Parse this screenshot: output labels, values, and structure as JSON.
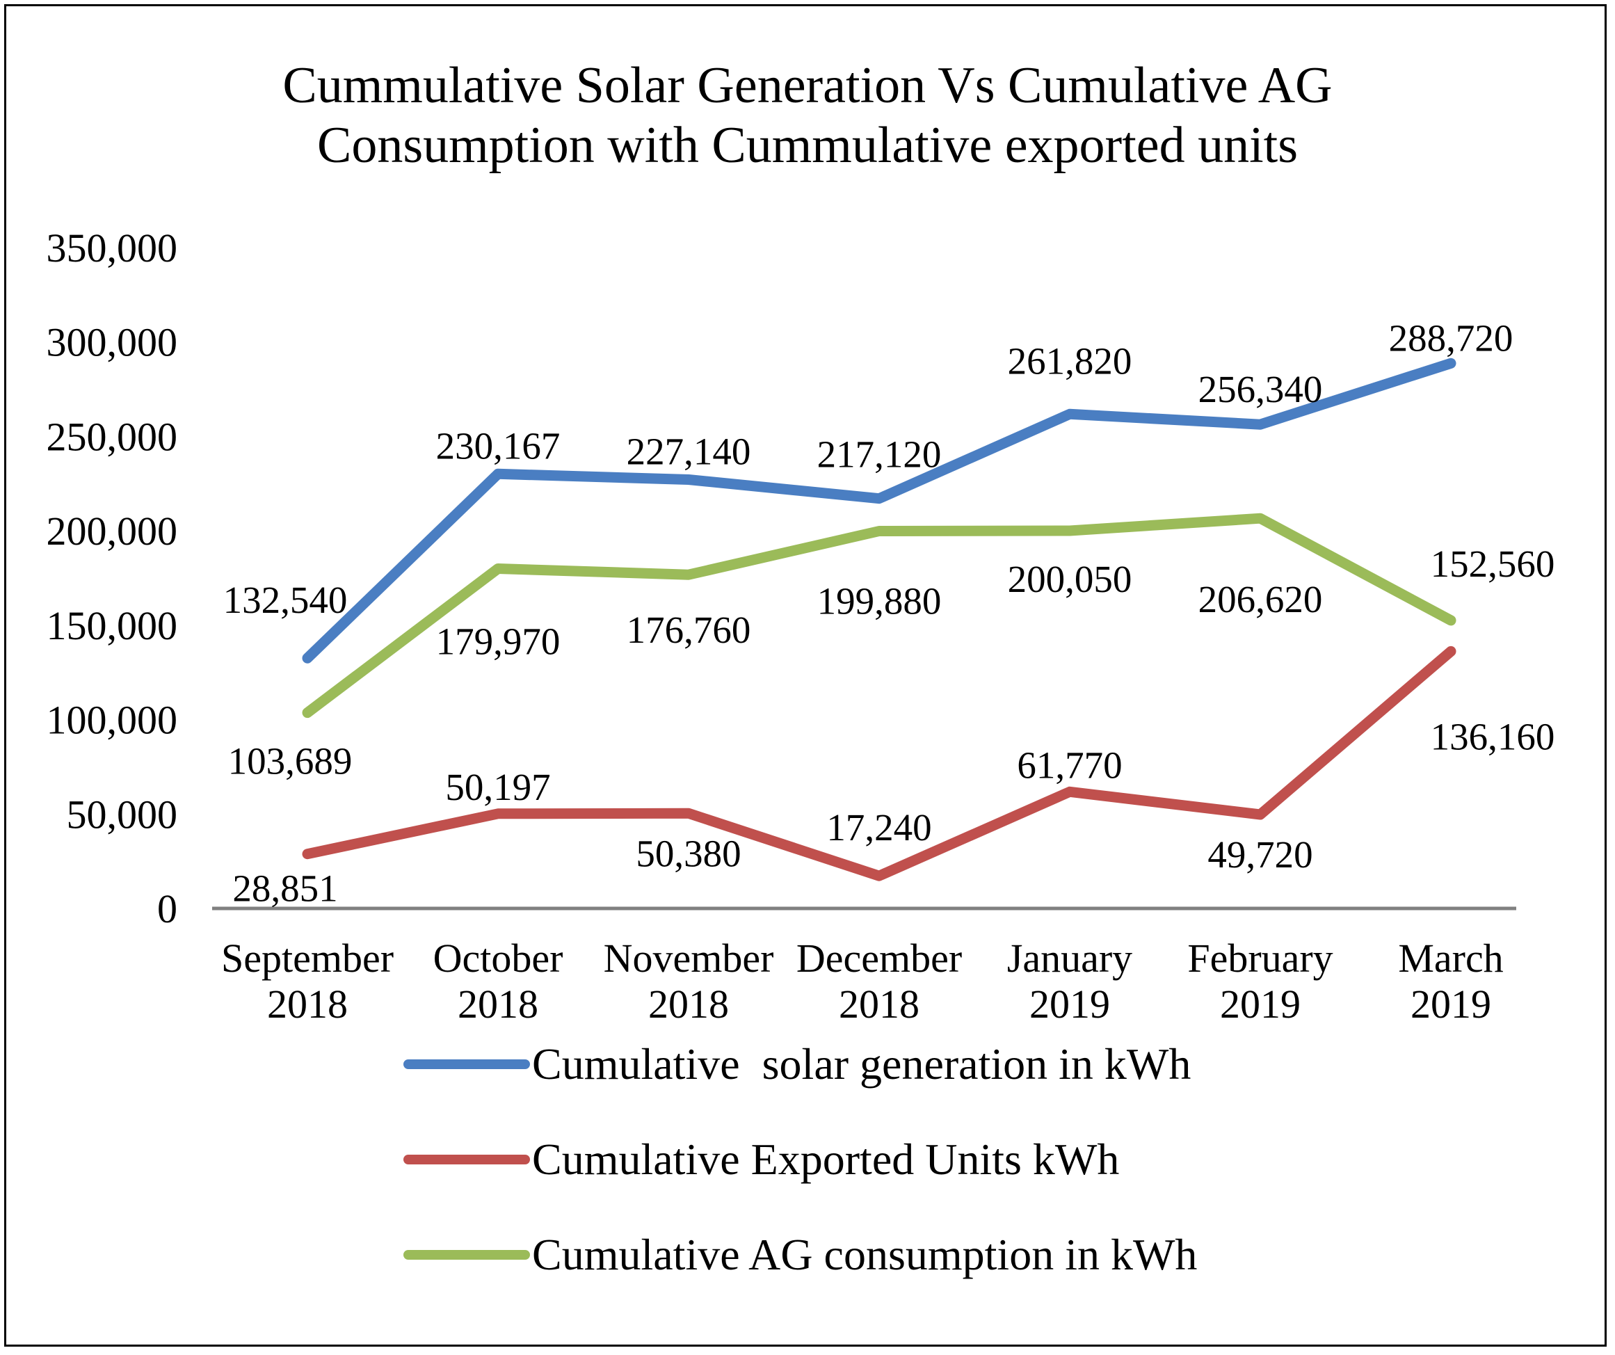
{
  "chart_data": {
    "type": "line",
    "title": "Cummulative Solar Generation Vs Cumulative AG Consumption with Cummulative exported units",
    "title_lines": [
      "Cummulative Solar Generation Vs Cumulative AG",
      "Consumption with Cummulative exported units"
    ],
    "categories": [
      [
        "September",
        "2018"
      ],
      [
        "October",
        "2018"
      ],
      [
        "November",
        "2018"
      ],
      [
        "December",
        "2018"
      ],
      [
        "January",
        "2019"
      ],
      [
        "February",
        "2019"
      ],
      [
        "March",
        "2019"
      ]
    ],
    "ylim": [
      0,
      350000
    ],
    "yticks": [
      0,
      50000,
      100000,
      150000,
      200000,
      250000,
      300000,
      350000
    ],
    "ytick_labels": [
      "0",
      "50,000",
      "100,000",
      "150,000",
      "200,000",
      "250,000",
      "300,000",
      "350,000"
    ],
    "grid": false,
    "legend_position": "bottom",
    "series": [
      {
        "name": "Cumulative  solar generation in kWh",
        "color": "#4a7ec2",
        "values": [
          132540,
          230167,
          227140,
          217120,
          261820,
          256340,
          288720
        ],
        "labels": [
          "132,540",
          "230,167",
          "227,140",
          "217,120",
          "261,820",
          "256,340",
          "288,720"
        ]
      },
      {
        "name": "Cumulative Exported Units kWh",
        "color": "#c0504d",
        "values": [
          28851,
          50197,
          50380,
          17240,
          61770,
          49720,
          136160
        ],
        "labels": [
          "28,851",
          "50,197",
          "50,380",
          "17,240",
          "61,770",
          "49,720",
          "136,160"
        ]
      },
      {
        "name": "Cumulative AG consumption in kWh",
        "color": "#9bbb59",
        "values": [
          103689,
          179970,
          176760,
          199880,
          200050,
          206620,
          152560
        ],
        "labels": [
          "103,689",
          "179,970",
          "176,760",
          "199,880",
          "200,050",
          "206,620",
          "152,560"
        ]
      }
    ],
    "axis_color": "#808080"
  }
}
